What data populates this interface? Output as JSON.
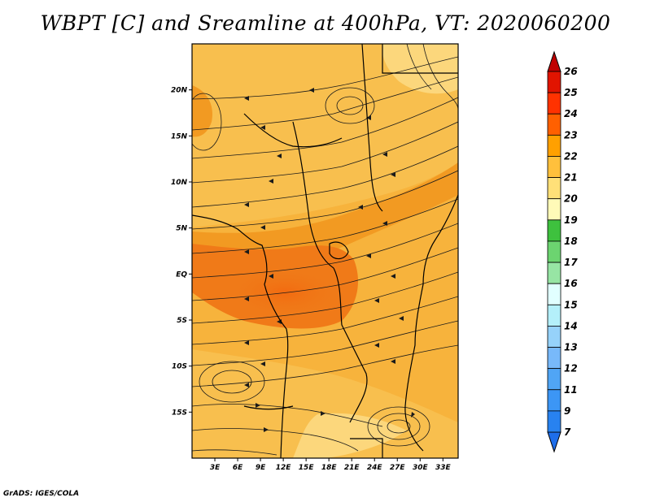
{
  "title": "WBPT [C] and Sreamline at 400hPa, VT: 2020060200",
  "credit": "GrADS: IGES/COLA",
  "map": {
    "lat_ticks": [
      {
        "lat": 20,
        "label": "20N"
      },
      {
        "lat": 15,
        "label": "15N"
      },
      {
        "lat": 10,
        "label": "10N"
      },
      {
        "lat": 5,
        "label": "5N"
      },
      {
        "lat": 0,
        "label": "EQ"
      },
      {
        "lat": -5,
        "label": "5S"
      },
      {
        "lat": -10,
        "label": "10S"
      },
      {
        "lat": -15,
        "label": "15S"
      }
    ],
    "lon_ticks": [
      {
        "lon": 3,
        "label": "3E"
      },
      {
        "lon": 6,
        "label": "6E"
      },
      {
        "lon": 9,
        "label": "9E"
      },
      {
        "lon": 12,
        "label": "12E"
      },
      {
        "lon": 15,
        "label": "15E"
      },
      {
        "lon": 18,
        "label": "18E"
      },
      {
        "lon": 21,
        "label": "21E"
      },
      {
        "lon": 24,
        "label": "24E"
      },
      {
        "lon": 27,
        "label": "27E"
      },
      {
        "lon": 30,
        "label": "30E"
      },
      {
        "lon": 33,
        "label": "33E"
      }
    ],
    "lon_range": [
      0,
      35
    ],
    "lat_range": [
      -20,
      25
    ]
  },
  "colorbar": {
    "labels": [
      "7",
      "9",
      "11",
      "12",
      "13",
      "14",
      "15",
      "16",
      "17",
      "18",
      "19",
      "20",
      "21",
      "22",
      "23",
      "24",
      "25",
      "26"
    ],
    "colors": [
      "#1e6eeb",
      "#2882f0",
      "#3c96f5",
      "#50a5f5",
      "#78b9fa",
      "#96d2fa",
      "#b4f0fa",
      "#e1ffff",
      "#97e5a4",
      "#6cd470",
      "#3ec13e",
      "#fffab8",
      "#ffe078",
      "#ffc03c",
      "#ffa000",
      "#ff6000",
      "#ff3200",
      "#e11400",
      "#c00000"
    ]
  }
}
